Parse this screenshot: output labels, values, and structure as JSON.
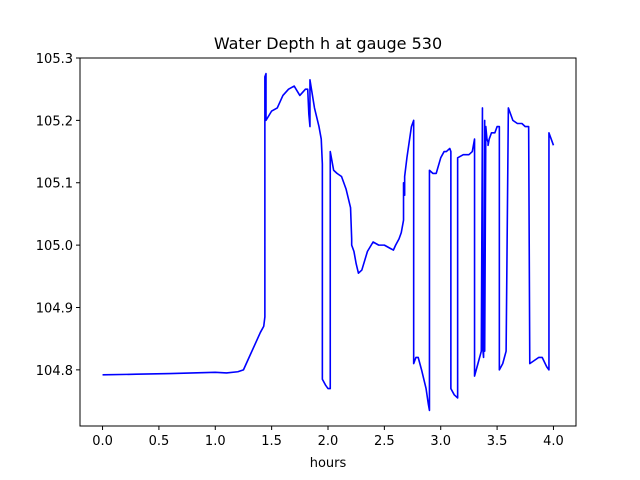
{
  "chart_data": {
    "type": "line",
    "title": "Water Depth h at gauge 530",
    "xlabel": "hours",
    "ylabel": "",
    "xlim": [
      -0.2,
      4.2
    ],
    "ylim": [
      104.71,
      105.3
    ],
    "xticks": [
      0.0,
      0.5,
      1.0,
      1.5,
      2.0,
      2.5,
      3.0,
      3.5,
      4.0
    ],
    "xtick_labels": [
      "0.0",
      "0.5",
      "1.0",
      "1.5",
      "2.0",
      "2.5",
      "3.0",
      "3.5",
      "4.0"
    ],
    "yticks": [
      104.8,
      104.9,
      105.0,
      105.1,
      105.2,
      105.3
    ],
    "ytick_labels": [
      "104.8",
      "104.9",
      "105.0",
      "105.1",
      "105.2",
      "105.3"
    ],
    "grid": false,
    "line_color": "#0000ff",
    "series": [
      {
        "x": [
          0.0,
          0.3,
          0.6,
          0.8,
          1.0,
          1.1,
          1.2,
          1.25,
          1.3,
          1.35,
          1.4,
          1.43,
          1.44,
          1.44,
          1.45,
          1.45,
          1.5,
          1.55,
          1.6,
          1.65,
          1.7,
          1.75,
          1.8,
          1.82,
          1.83,
          1.84,
          1.84,
          1.88,
          1.92,
          1.94,
          1.95,
          1.95,
          1.98,
          2.0,
          2.02,
          2.02,
          2.03,
          2.05,
          2.08,
          2.12,
          2.16,
          2.2,
          2.21,
          2.21,
          2.23,
          2.25,
          2.27,
          2.3,
          2.35,
          2.4,
          2.45,
          2.5,
          2.55,
          2.58,
          2.6,
          2.63,
          2.65,
          2.67,
          2.67,
          2.68,
          2.68,
          2.7,
          2.74,
          2.76,
          2.76,
          2.78,
          2.8,
          2.83,
          2.87,
          2.89,
          2.9,
          2.9,
          2.93,
          2.96,
          3.0,
          3.03,
          3.05,
          3.08,
          3.09,
          3.09,
          3.12,
          3.15,
          3.15,
          3.2,
          3.25,
          3.28,
          3.3,
          3.3,
          3.33,
          3.36,
          3.37,
          3.37,
          3.38,
          3.39,
          3.39,
          3.4,
          3.41,
          3.42,
          3.42,
          3.43,
          3.45,
          3.48,
          3.5,
          3.52,
          3.52,
          3.55,
          3.58,
          3.6,
          3.6,
          3.64,
          3.68,
          3.72,
          3.75,
          3.78,
          3.79,
          3.79,
          3.83,
          3.87,
          3.9,
          3.94,
          3.96,
          3.96,
          3.98,
          3.99,
          4.0
        ],
        "y": [
          104.792,
          104.793,
          104.794,
          104.795,
          104.796,
          104.795,
          104.797,
          104.8,
          104.82,
          104.84,
          104.86,
          104.87,
          104.885,
          105.27,
          105.275,
          105.2,
          105.215,
          105.22,
          105.24,
          105.25,
          105.255,
          105.24,
          105.25,
          105.25,
          105.21,
          105.19,
          105.265,
          105.22,
          105.19,
          105.17,
          105.13,
          104.785,
          104.775,
          104.77,
          104.77,
          105.15,
          105.14,
          105.12,
          105.115,
          105.11,
          105.09,
          105.06,
          105.01,
          105.0,
          104.99,
          104.97,
          104.955,
          104.96,
          104.99,
          105.005,
          105.0,
          105.0,
          104.995,
          104.992,
          105.0,
          105.01,
          105.02,
          105.04,
          105.1,
          105.08,
          105.11,
          105.14,
          105.19,
          105.2,
          104.81,
          104.82,
          104.82,
          104.8,
          104.77,
          104.745,
          104.735,
          105.12,
          105.115,
          105.115,
          105.14,
          105.15,
          105.15,
          105.155,
          105.15,
          104.77,
          104.76,
          104.755,
          105.14,
          105.145,
          105.145,
          105.15,
          105.17,
          104.79,
          104.81,
          104.83,
          105.22,
          104.84,
          104.82,
          105.2,
          104.83,
          105.19,
          105.17,
          105.165,
          105.16,
          105.17,
          105.18,
          105.18,
          105.19,
          105.19,
          104.8,
          104.81,
          104.83,
          105.22,
          105.22,
          105.2,
          105.195,
          105.195,
          105.19,
          105.19,
          104.81,
          104.81,
          104.815,
          104.82,
          104.82,
          104.805,
          104.8,
          105.18,
          105.17,
          105.165,
          105.16
        ]
      }
    ]
  }
}
